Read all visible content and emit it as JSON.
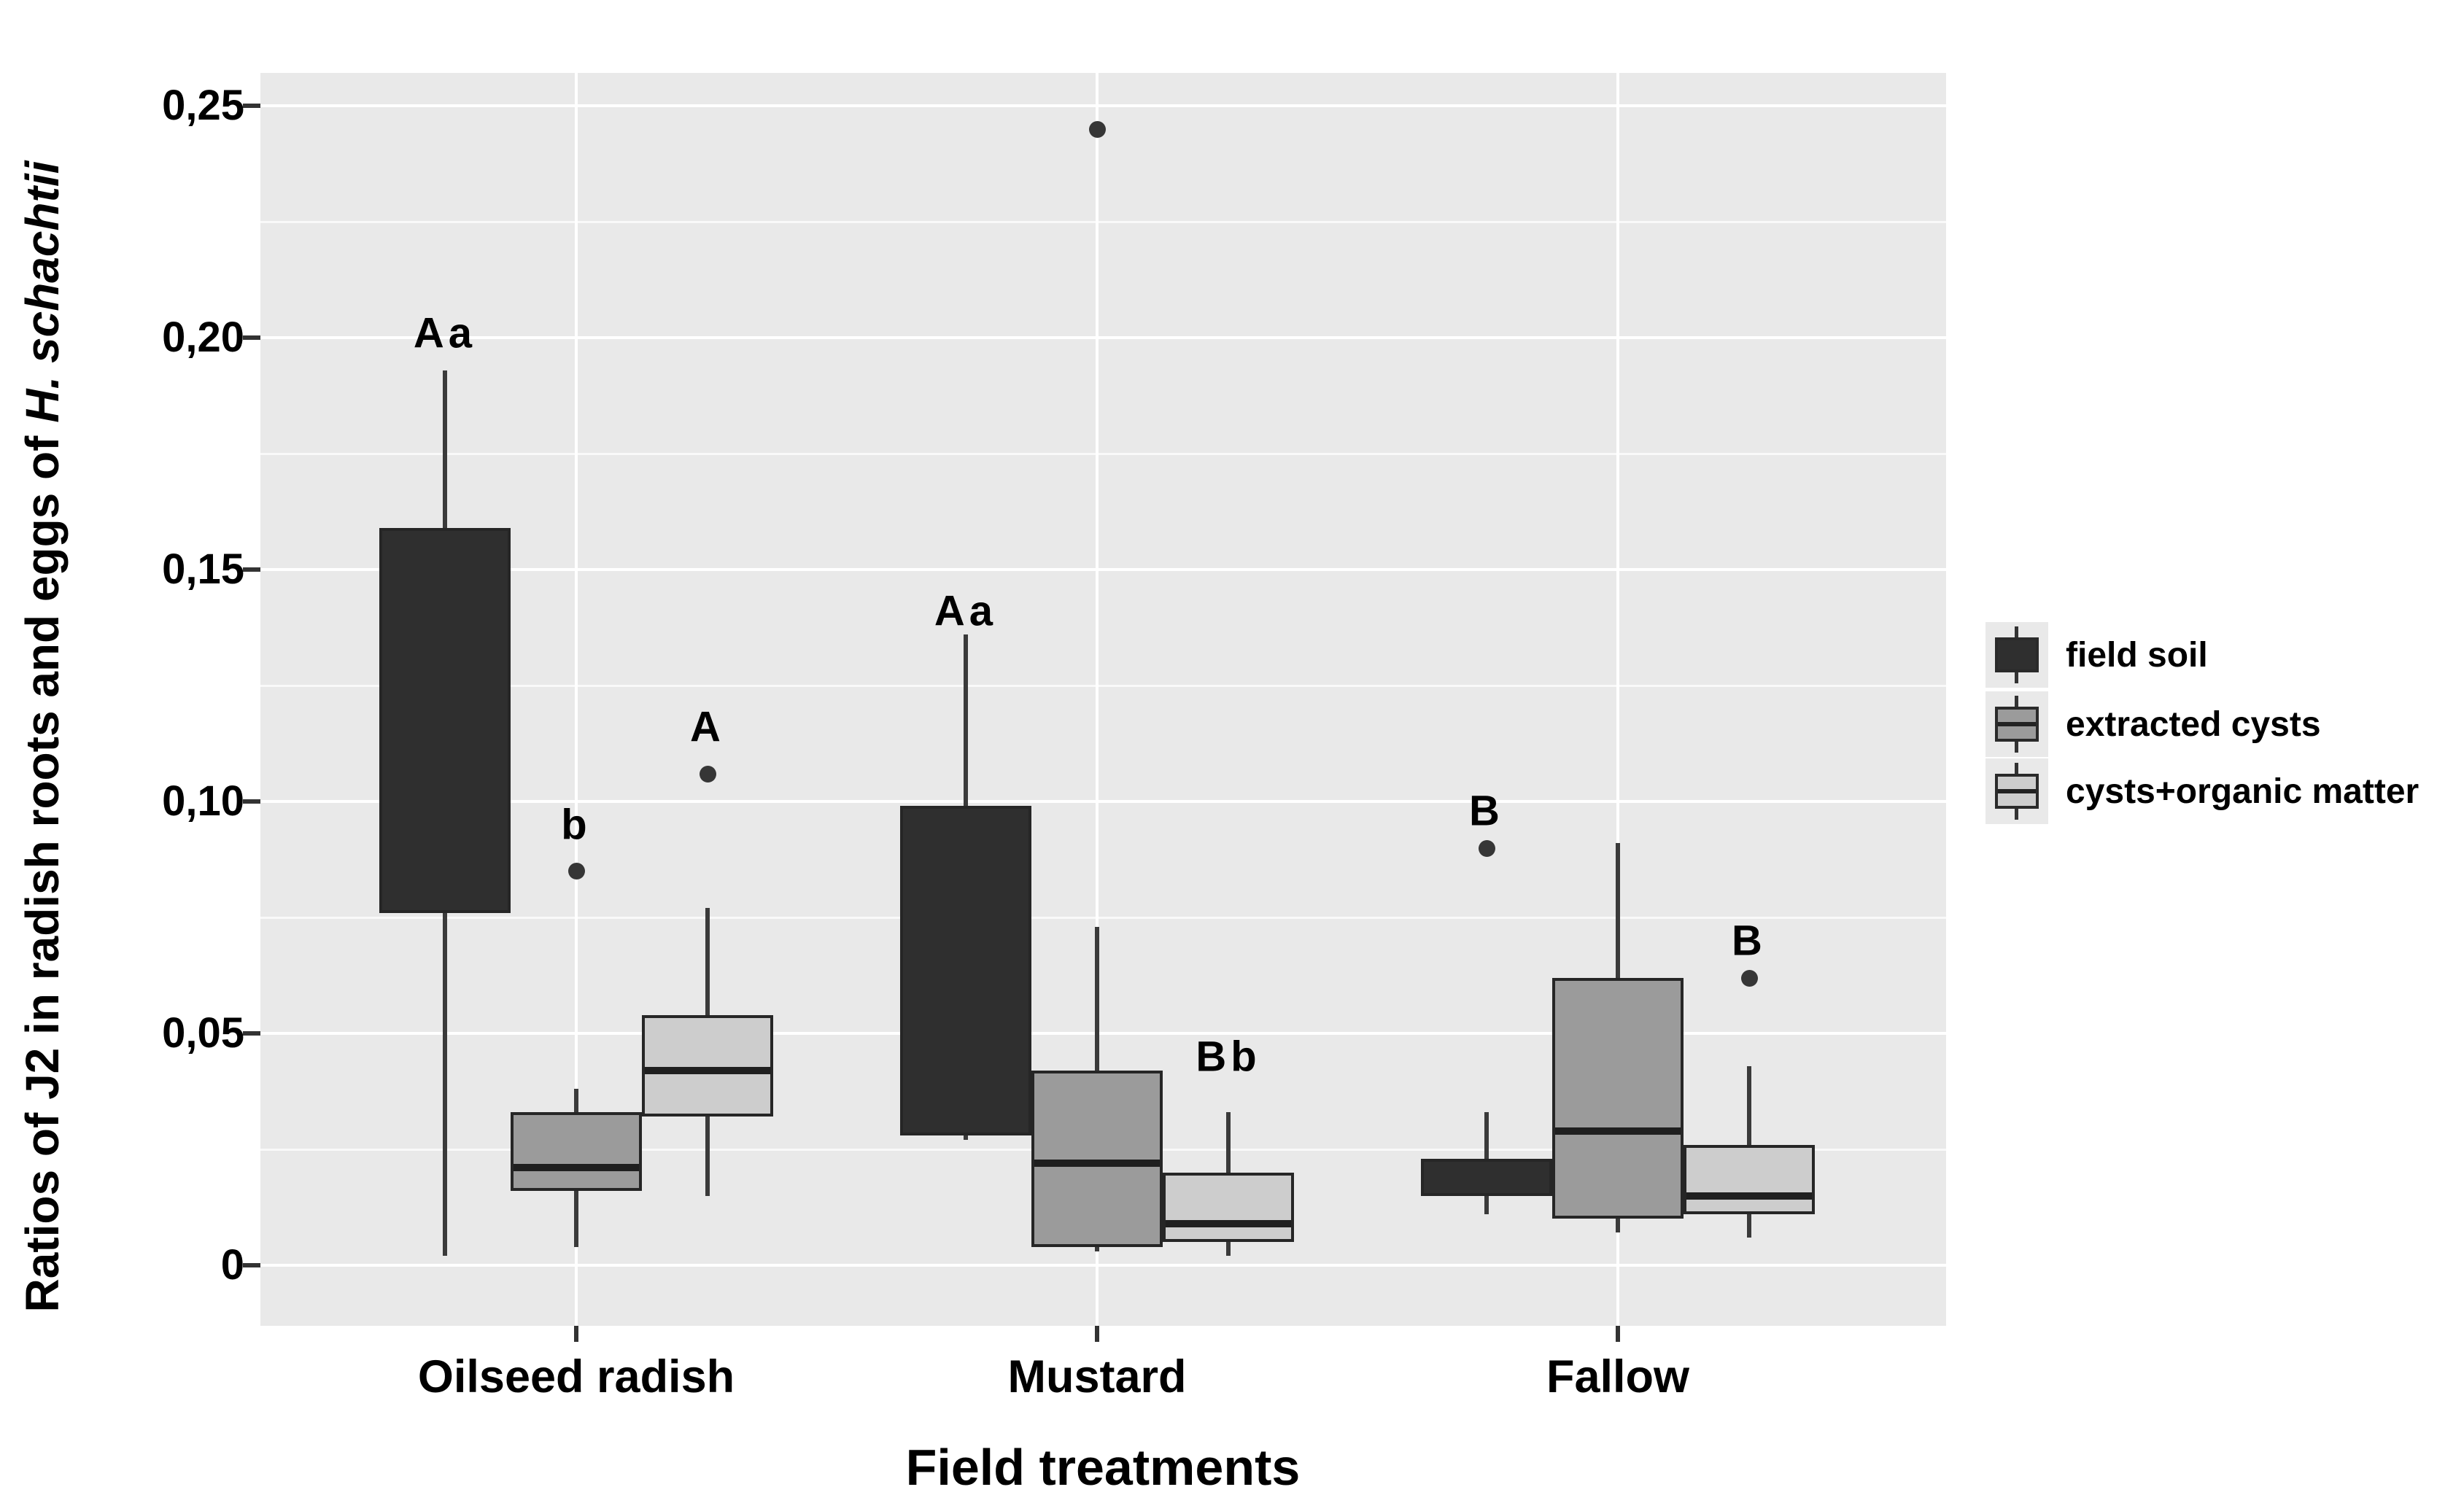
{
  "axes": {
    "y_title_prefix": "Ratios of J2 in radish roots and eggs of ",
    "y_title_italic": "H. schachtii",
    "x_title": "Field treatments"
  },
  "legend": {
    "items": [
      {
        "label": "field soil",
        "fill": "#2f2f2f"
      },
      {
        "label": "extracted cysts",
        "fill": "#9b9b9b"
      },
      {
        "label": "cysts+organic matter",
        "fill": "#cdcdcd"
      }
    ]
  },
  "chart_data": {
    "type": "boxplot",
    "title": "",
    "xlabel": "Field treatments",
    "ylabel": "Ratios of J2 in radish roots and eggs of H. schachtii",
    "ylim": [
      0,
      0.26
    ],
    "grid": "on",
    "legend_position": "right",
    "panel_bg": "#e9e9e9",
    "outlier_color": "#363636",
    "yticks": [
      {
        "value": 0.25,
        "label": "0,25"
      },
      {
        "value": 0.2,
        "label": "0,20"
      },
      {
        "value": 0.15,
        "label": "0,15"
      },
      {
        "value": 0.1,
        "label": "0,10"
      },
      {
        "value": 0.05,
        "label": "0,05"
      },
      {
        "value": 0,
        "label": "0"
      }
    ],
    "minor_gridlines": [
      0.225,
      0.175,
      0.125,
      0.075,
      0.025
    ],
    "categories": [
      "Oilseed radish",
      "Mustard",
      "Fallow"
    ],
    "series": [
      {
        "name": "field soil",
        "fill": "#2f2f2f",
        "boxes": [
          {
            "min": 0.002,
            "q1": 0.076,
            "median": null,
            "q3": 0.159,
            "max": 0.193,
            "outliers": []
          },
          {
            "min": 0.027,
            "q1": 0.028,
            "median": null,
            "q3": 0.099,
            "max": 0.136,
            "outliers": []
          },
          {
            "min": 0.011,
            "q1": 0.015,
            "median": null,
            "q3": 0.023,
            "max": 0.033,
            "outliers": [
              0.09
            ]
          }
        ]
      },
      {
        "name": "extracted cysts",
        "fill": "#9b9b9b",
        "boxes": [
          {
            "min": 0.004,
            "q1": 0.016,
            "median": 0.021,
            "q3": 0.033,
            "max": 0.038,
            "outliers": [
              0.085
            ]
          },
          {
            "min": 0.003,
            "q1": 0.004,
            "median": 0.022,
            "q3": 0.042,
            "max": 0.073,
            "outliers": [
              0.245
            ]
          },
          {
            "min": 0.007,
            "q1": 0.01,
            "median": 0.029,
            "q3": 0.062,
            "max": 0.091,
            "outliers": []
          }
        ]
      },
      {
        "name": "cysts+organic matter",
        "fill": "#cdcdcd",
        "boxes": [
          {
            "min": 0.015,
            "q1": 0.032,
            "median": 0.042,
            "q3": 0.054,
            "max": 0.077,
            "outliers": [
              0.106
            ]
          },
          {
            "min": 0.002,
            "q1": 0.005,
            "median": 0.009,
            "q3": 0.02,
            "max": 0.033,
            "outliers": []
          },
          {
            "min": 0.006,
            "q1": 0.011,
            "median": 0.015,
            "q3": 0.026,
            "max": 0.043,
            "outliers": [
              0.062
            ]
          }
        ]
      }
    ],
    "annotations": [
      {
        "text": "Aa",
        "category": 0,
        "series": 0,
        "y": 0.201
      },
      {
        "text": "b",
        "category": 0,
        "series": 1,
        "y": 0.095
      },
      {
        "text": "A",
        "category": 0,
        "series": 2,
        "y": 0.116
      },
      {
        "text": "Aa",
        "category": 1,
        "series": 0,
        "y": 0.141
      },
      {
        "text": "Bb",
        "category": 1,
        "series": 2,
        "y": 0.045
      },
      {
        "text": "B",
        "category": 2,
        "series": 0,
        "y": 0.098
      },
      {
        "text": "B",
        "category": 2,
        "series": 2,
        "y": 0.07
      }
    ]
  }
}
